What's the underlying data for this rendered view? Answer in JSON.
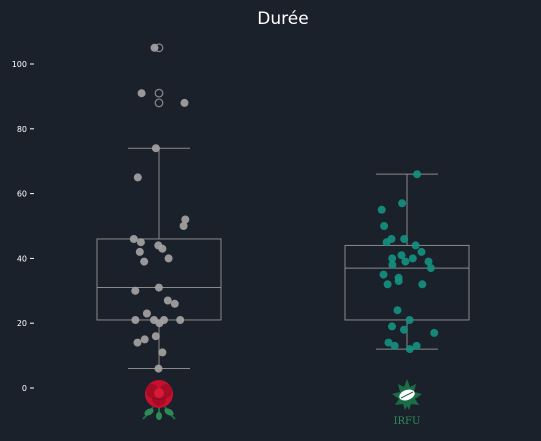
{
  "chart_data": {
    "type": "box",
    "title": "Durée",
    "xlabel": "",
    "ylabel": "",
    "ylim": [
      -8,
      110
    ],
    "yticks": [
      0,
      20,
      40,
      60,
      80,
      100
    ],
    "grid": false,
    "legend": "none",
    "categories": [
      "England",
      "Ireland"
    ],
    "colors": {
      "background": "#1b212b",
      "box": "#8a8a8a",
      "england_points": "#a3a3a3",
      "ireland_points": "#14907f",
      "england_logo_red": "#c8102e",
      "ireland_logo_green": "#1a6e46"
    },
    "series": [
      {
        "box": {
          "min": 6,
          "q1": 21,
          "median": 31,
          "q3": 46,
          "max": 74
        },
        "outliers": [
          88,
          91,
          105
        ],
        "points": [
          6,
          11,
          14,
          15,
          16,
          20,
          21,
          21,
          21,
          21,
          23,
          26,
          27,
          30,
          31,
          39,
          40,
          42,
          43,
          44,
          45,
          46,
          50,
          52,
          65,
          74,
          88,
          91,
          105
        ]
      },
      {
        "box": {
          "min": 12,
          "q1": 21,
          "median": 37,
          "q3": 44,
          "max": 66
        },
        "outliers": [],
        "points": [
          12,
          13,
          13,
          14,
          17,
          18,
          19,
          21,
          24,
          32,
          32,
          33,
          34,
          35,
          37,
          38,
          39,
          39,
          40,
          40,
          41,
          42,
          44,
          45,
          46,
          46,
          50,
          55,
          57,
          66
        ]
      }
    ],
    "logo_text": [
      "",
      "IRFU"
    ]
  }
}
